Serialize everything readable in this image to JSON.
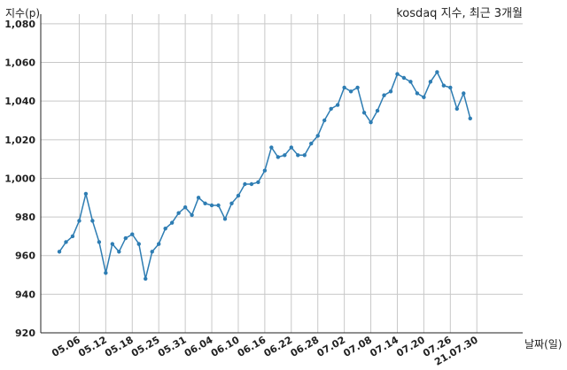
{
  "chart_data": {
    "type": "line",
    "title": "kosdaq 지수, 최근 3개월",
    "ylabel": "지수(p)",
    "xlabel": "날짜(일)",
    "ylim": [
      920,
      1085
    ],
    "y_ticks": [
      "920",
      "940",
      "960",
      "980",
      "1,000",
      "1,020",
      "1,040",
      "1,060",
      "1,080"
    ],
    "x_tick_labels": [
      "05.06",
      "05.12",
      "05.18",
      "05.25",
      "05.31",
      "06.04",
      "06.10",
      "06.16",
      "06.22",
      "06.28",
      "07.02",
      "07.08",
      "07.14",
      "07.20",
      "07.26",
      "21.07.30"
    ],
    "x_tick_indices": [
      3,
      7,
      11,
      15,
      19,
      23,
      27,
      31,
      35,
      39,
      43,
      47,
      51,
      55,
      59,
      63
    ],
    "grid": true,
    "series": [
      {
        "color": "#2e7db3",
        "values": [
          962,
          967,
          970,
          978,
          992,
          978,
          967,
          951,
          966,
          962,
          969,
          971,
          966,
          948,
          962,
          966,
          974,
          977,
          982,
          985,
          981,
          990,
          987,
          986,
          986,
          979,
          987,
          991,
          997,
          997,
          998,
          1004,
          1016,
          1011,
          1012,
          1016,
          1012,
          1012,
          1018,
          1022,
          1030,
          1036,
          1038,
          1047,
          1045,
          1047,
          1034,
          1029,
          1035,
          1043,
          1045,
          1054,
          1052,
          1050,
          1044,
          1042,
          1050,
          1055,
          1048,
          1047,
          1036,
          1044,
          1031
        ]
      }
    ]
  }
}
